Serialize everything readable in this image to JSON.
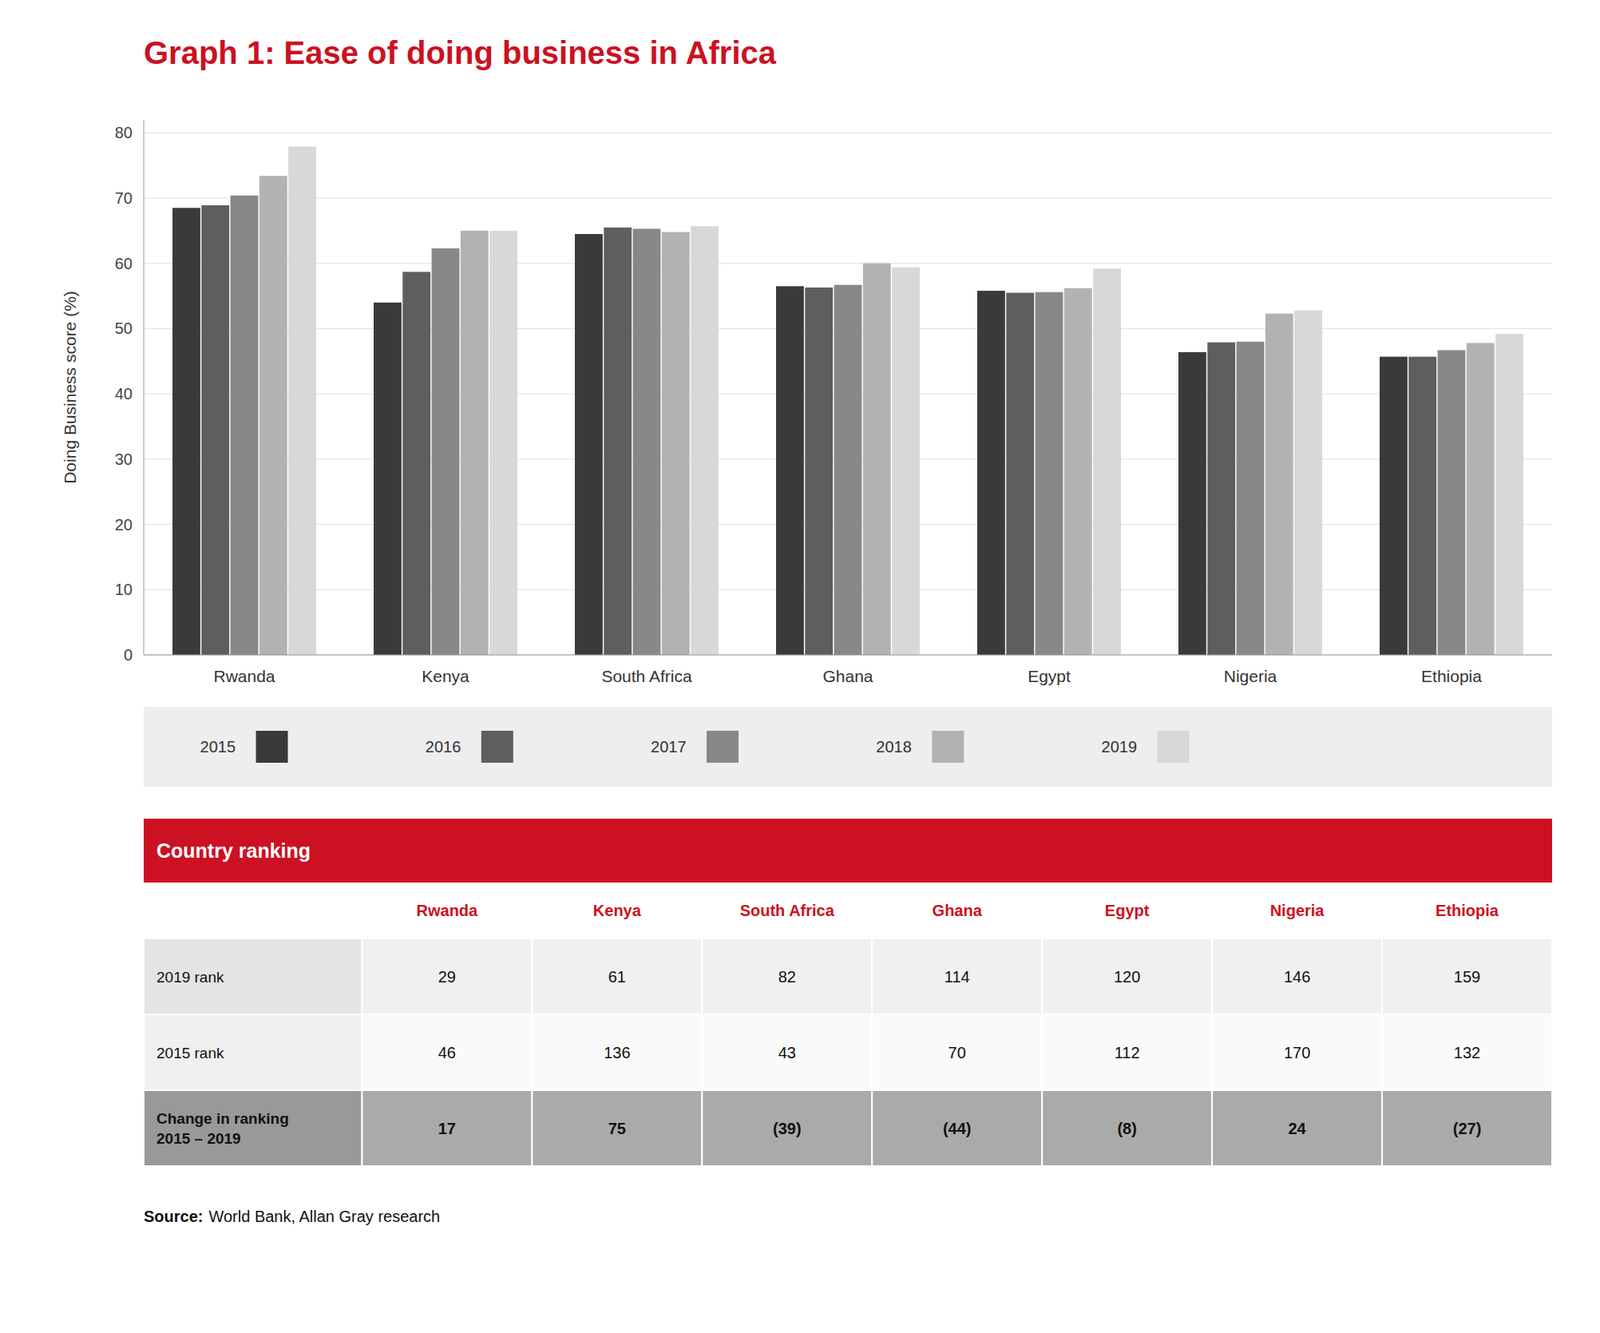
{
  "chart_data": {
    "type": "bar",
    "title": "Graph 1: Ease of doing business in Africa",
    "ylabel": "Doing Business score (%)",
    "categories": [
      "Rwanda",
      "Kenya",
      "South Africa",
      "Ghana",
      "Egypt",
      "Nigeria",
      "Ethiopia"
    ],
    "series": [
      {
        "name": "2015",
        "color": "#3a3a3a",
        "values": [
          68.5,
          54.0,
          64.5,
          56.5,
          55.8,
          46.4,
          45.7
        ]
      },
      {
        "name": "2016",
        "color": "#5e5e5e",
        "values": [
          68.9,
          58.7,
          65.5,
          56.3,
          55.5,
          47.9,
          45.7
        ]
      },
      {
        "name": "2017",
        "color": "#888888",
        "values": [
          70.4,
          62.3,
          65.3,
          56.7,
          55.6,
          48.0,
          46.7
        ]
      },
      {
        "name": "2018",
        "color": "#b2b2b2",
        "values": [
          73.4,
          65.0,
          64.8,
          60.0,
          56.2,
          52.3,
          47.8
        ]
      },
      {
        "name": "2019",
        "color": "#d8d8d8",
        "values": [
          77.9,
          65.0,
          65.7,
          59.4,
          59.2,
          52.8,
          49.2
        ]
      }
    ],
    "ylim": [
      0,
      82
    ],
    "yticks": [
      0,
      10,
      20,
      30,
      40,
      50,
      60,
      70,
      80
    ],
    "grid": true,
    "legend": "bottom",
    "table": {
      "title": "Country ranking",
      "columns": [
        "Rwanda",
        "Kenya",
        "South Africa",
        "Ghana",
        "Egypt",
        "Nigeria",
        "Ethiopia"
      ],
      "rows": [
        {
          "label": "2019 rank",
          "values": [
            29,
            61,
            82,
            114,
            120,
            146,
            159
          ]
        },
        {
          "label": "2015 rank",
          "values": [
            46,
            136,
            43,
            70,
            112,
            170,
            132
          ]
        },
        {
          "label": "Change in ranking\n2015 – 2019",
          "values": [
            17,
            75,
            -39,
            -44,
            -8,
            24,
            -27
          ],
          "value_labels": [
            "17",
            "75",
            "(39)",
            "(44)",
            "(8)",
            "24",
            "(27)"
          ]
        }
      ]
    },
    "source_label": "Source:",
    "source": "World Bank, Allan Gray research"
  }
}
